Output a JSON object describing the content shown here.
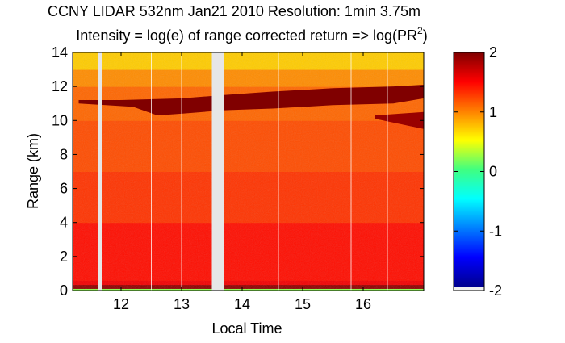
{
  "chart_data": {
    "type": "heatmap",
    "title_line1": "CCNY LIDAR 532nm Jan21 2010 Resolution: 1min 3.75m",
    "title_line2_prefix": "Intensity = log(e) of range corrected return => log(PR",
    "title_line2_sup": "2",
    "title_line2_suffix": ")",
    "xlabel": "Local Time",
    "ylabel": "Range (km)",
    "xlim": [
      11.2,
      17.0
    ],
    "ylim": [
      0,
      14
    ],
    "x_ticks": [
      12,
      13,
      14,
      15,
      16
    ],
    "y_ticks": [
      0,
      2,
      4,
      6,
      8,
      10,
      12,
      14
    ],
    "grid": false,
    "colorbar": {
      "range": [
        -2,
        2
      ],
      "ticks": [
        -2,
        -1,
        0,
        1,
        2
      ],
      "tick_labels": [
        "-2",
        "-1",
        "0",
        "1",
        "2"
      ],
      "colormap": "jet"
    },
    "layers": [
      {
        "from_km": 0.0,
        "to_km": 0.12,
        "value": 0.2
      },
      {
        "from_km": 0.12,
        "to_km": 0.35,
        "value": 1.95
      },
      {
        "from_km": 0.35,
        "to_km": 0.6,
        "value": 1.55
      },
      {
        "from_km": 0.6,
        "to_km": 4.0,
        "value": 1.45
      },
      {
        "from_km": 4.0,
        "to_km": 7.0,
        "value": 1.3
      },
      {
        "from_km": 7.0,
        "to_km": 10.0,
        "value": 1.2
      },
      {
        "from_km": 10.0,
        "to_km": 12.0,
        "value": 1.1
      },
      {
        "from_km": 12.0,
        "to_km": 13.0,
        "value": 0.95
      },
      {
        "from_km": 13.0,
        "to_km": 14.0,
        "value": 0.7
      }
    ],
    "cloud_layer": {
      "value": 2.0,
      "top_km": [
        [
          11.3,
          11.2
        ],
        [
          12.0,
          11.2
        ],
        [
          13.0,
          11.3
        ],
        [
          13.7,
          11.5
        ],
        [
          14.5,
          11.7
        ],
        [
          15.5,
          11.9
        ],
        [
          16.5,
          12.0
        ],
        [
          17.0,
          12.1
        ]
      ],
      "bottom_km": [
        [
          17.0,
          11.3
        ],
        [
          16.5,
          11.0
        ],
        [
          15.5,
          10.9
        ],
        [
          14.5,
          10.7
        ],
        [
          13.7,
          10.6
        ],
        [
          13.0,
          10.4
        ],
        [
          12.6,
          10.3
        ],
        [
          12.2,
          10.8
        ],
        [
          11.3,
          11.0
        ]
      ]
    },
    "secondary_cloud": {
      "value": 1.9,
      "top_km": [
        [
          16.2,
          10.3
        ],
        [
          17.0,
          10.5
        ]
      ],
      "bottom_km": [
        [
          17.0,
          9.5
        ],
        [
          16.6,
          9.8
        ],
        [
          16.2,
          10.1
        ]
      ]
    },
    "data_gaps": [
      {
        "from_time": 11.62,
        "to_time": 11.68
      },
      {
        "from_time": 13.5,
        "to_time": 13.7
      }
    ],
    "profile_lines_time": [
      12.5,
      13.0,
      14.6,
      15.8,
      16.4
    ]
  }
}
